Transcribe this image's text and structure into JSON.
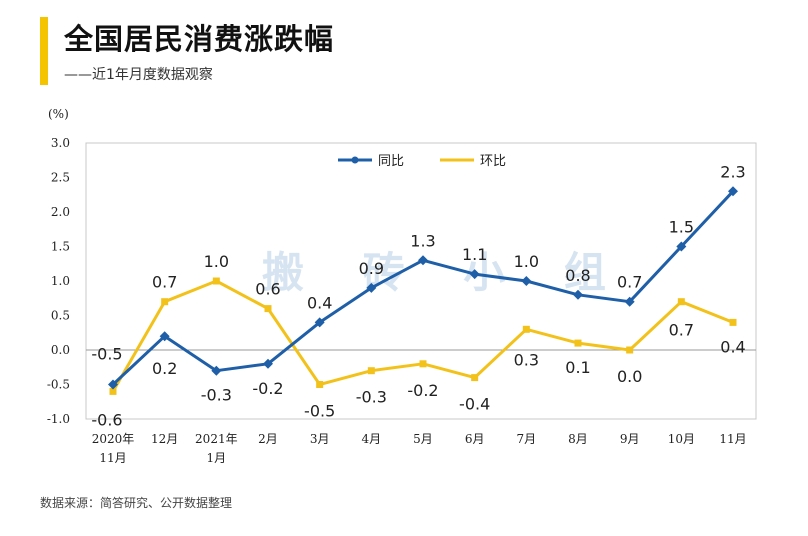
{
  "header": {
    "title": "全国居民消费涨跌幅",
    "subtitle": "——近1年月度数据观察"
  },
  "footer": {
    "source": "数据来源：简答研究、公开数据整理"
  },
  "watermark": "搬 砖 小 组",
  "colors": {
    "accent": "#f5c400",
    "yoy": "#1f5fa8",
    "mom": "#f2c21b"
  },
  "chart_data": {
    "type": "line",
    "title": "全国居民消费涨跌幅",
    "ylabel": "(%)",
    "xlabel": "",
    "ylim": [
      -1.0,
      3.0
    ],
    "yticks": [
      "3.0",
      "2.5",
      "2.0",
      "1.5",
      "1.0",
      "0.5",
      "0.0",
      "-0.5",
      "-1.0"
    ],
    "ytick_values": [
      3.0,
      2.5,
      2.0,
      1.5,
      1.0,
      0.5,
      0.0,
      -0.5,
      -1.0
    ],
    "categories": [
      "2020年\n11月",
      "12月",
      "2021年\n1月",
      "2月",
      "3月",
      "4月",
      "5月",
      "6月",
      "7月",
      "8月",
      "9月",
      "10月",
      "11月"
    ],
    "legend_position": "top-center",
    "series": [
      {
        "name": "同比",
        "values": [
          -0.5,
          0.2,
          -0.3,
          -0.2,
          0.4,
          0.9,
          1.3,
          1.1,
          1.0,
          0.8,
          0.7,
          1.5,
          2.3
        ],
        "labels": [
          "-0.5",
          "0.2",
          "-0.3",
          "-0.2",
          "0.4",
          "0.9",
          "1.3",
          "1.1",
          "1.0",
          "0.8",
          "0.7",
          "1.5",
          "2.3"
        ]
      },
      {
        "name": "环比",
        "values": [
          -0.6,
          0.7,
          1.0,
          0.6,
          -0.5,
          -0.3,
          -0.2,
          -0.4,
          0.3,
          0.1,
          0.0,
          0.7,
          0.4
        ],
        "labels": [
          "-0.6",
          "0.7",
          "1.0",
          "0.6",
          "-0.5",
          "-0.3",
          "-0.2",
          "-0.4",
          "0.3",
          "0.1",
          "0.0",
          "0.7",
          "0.4"
        ]
      }
    ]
  }
}
